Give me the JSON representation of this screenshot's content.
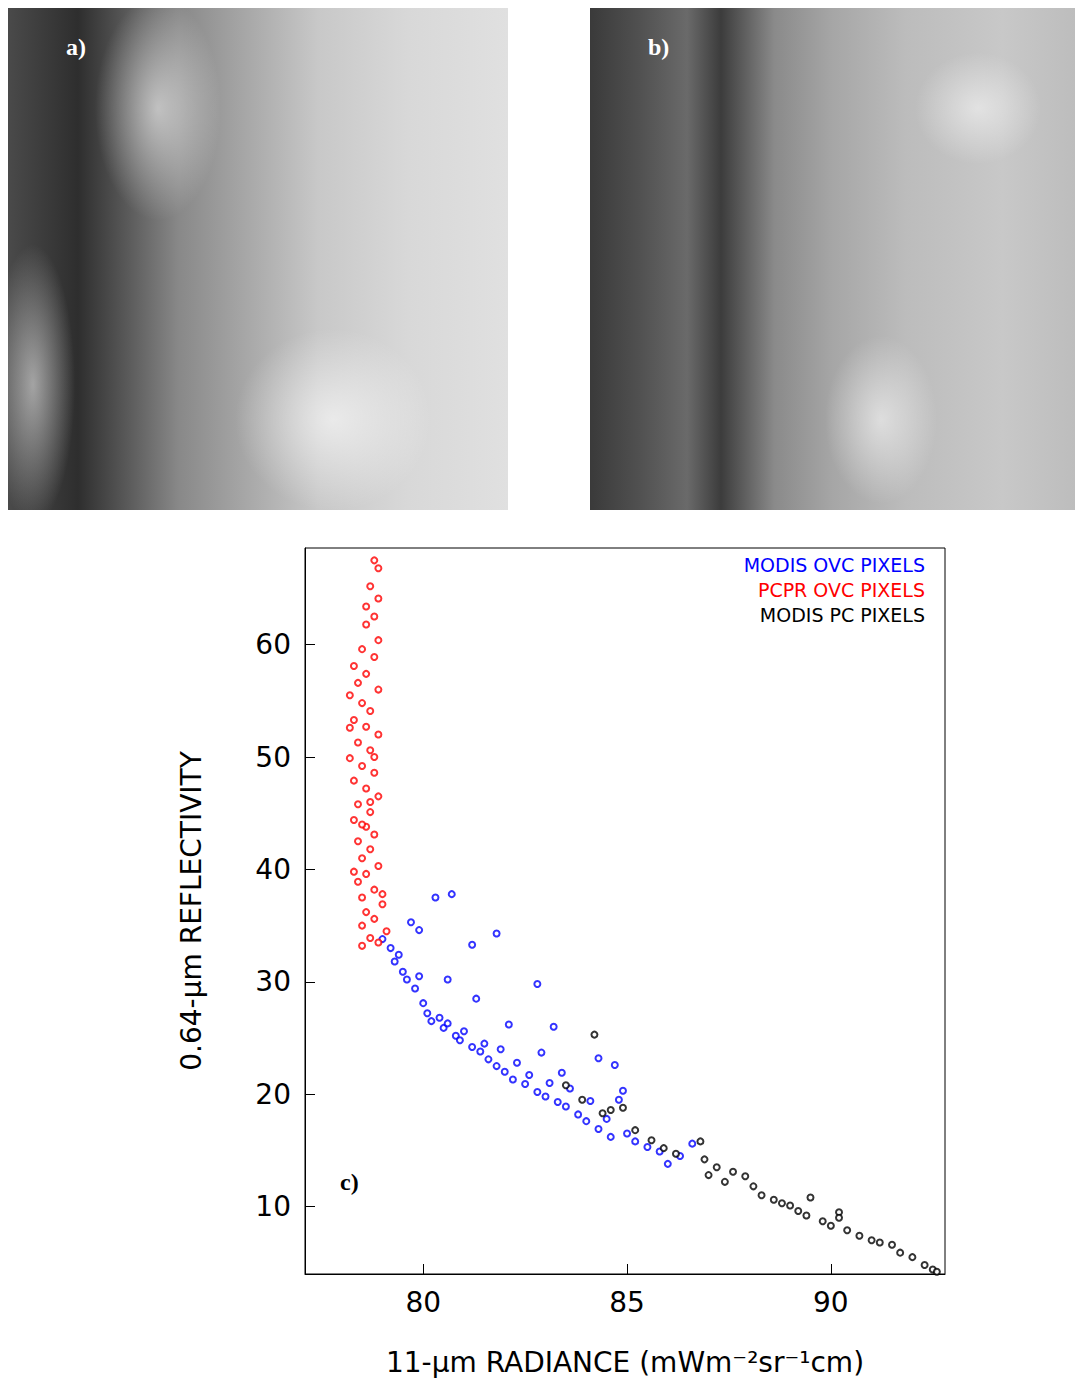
{
  "images": [
    {
      "label": "a)"
    },
    {
      "label": "b)"
    }
  ],
  "chart_data": {
    "type": "scatter",
    "panel_label": "c)",
    "x_label": "11-μm RADIANCE (mWm⁻²sr⁻¹cm)",
    "y_label": "0.64-μm REFLECTIVITY",
    "xlim": [
      77.1,
      92.8
    ],
    "xticks": [
      80,
      85,
      90
    ],
    "ylim": [
      4,
      68.6
    ],
    "yticks": [
      10,
      20,
      30,
      40,
      50,
      60
    ],
    "legend": "upper right",
    "marker": "open circle",
    "grid": false,
    "series": [
      {
        "name": "MODIS OVC PIXELS",
        "color": "#0000ff",
        "x": [
          79.0,
          79.2,
          79.3,
          79.4,
          79.5,
          79.6,
          79.8,
          79.9,
          80.0,
          80.1,
          80.2,
          80.4,
          80.5,
          80.6,
          80.8,
          80.9,
          81.0,
          81.2,
          81.4,
          81.5,
          81.6,
          81.8,
          81.9,
          82.0,
          82.2,
          82.3,
          82.5,
          82.6,
          82.8,
          83.0,
          83.1,
          83.3,
          83.5,
          83.6,
          83.8,
          84.0,
          84.1,
          84.3,
          84.5,
          84.6,
          84.8,
          85.0,
          85.2,
          85.5,
          85.8,
          86.0,
          86.3,
          86.6,
          79.7,
          79.9,
          80.3,
          80.7,
          81.2,
          81.8,
          81.3,
          82.8,
          83.2,
          82.1,
          84.3,
          84.7,
          83.4,
          80.6,
          82.9,
          84.9
        ],
        "values": [
          33.8,
          33.0,
          31.8,
          32.4,
          30.9,
          30.2,
          29.4,
          30.5,
          28.1,
          27.2,
          26.5,
          26.8,
          25.9,
          26.3,
          25.2,
          24.8,
          25.6,
          24.2,
          23.8,
          24.5,
          23.1,
          22.5,
          24.0,
          22.0,
          21.3,
          22.8,
          20.9,
          21.7,
          20.2,
          19.8,
          21.0,
          19.3,
          18.9,
          20.5,
          18.2,
          17.6,
          19.4,
          16.9,
          17.8,
          16.2,
          19.5,
          16.5,
          15.8,
          15.3,
          14.9,
          13.8,
          14.5,
          15.6,
          35.3,
          34.6,
          37.5,
          37.8,
          33.3,
          34.3,
          28.5,
          29.8,
          26.0,
          26.2,
          23.2,
          22.6,
          21.9,
          30.2,
          23.7,
          20.3
        ]
      },
      {
        "name": "PCPR OVC PIXELS",
        "color": "#ff0000",
        "x": [
          78.8,
          78.9,
          78.7,
          78.9,
          78.8,
          78.6,
          78.9,
          78.5,
          78.8,
          78.3,
          78.6,
          78.4,
          78.9,
          78.2,
          78.5,
          78.7,
          78.3,
          78.6,
          78.9,
          78.4,
          78.7,
          78.2,
          78.5,
          78.8,
          78.3,
          78.6,
          78.9,
          78.4,
          78.7,
          78.3,
          78.6,
          78.8,
          78.4,
          78.7,
          78.5,
          78.9,
          78.6,
          78.4,
          78.8,
          78.5,
          79.0,
          78.6,
          78.8,
          78.5,
          79.1,
          78.7,
          78.5,
          78.9,
          78.2,
          78.3,
          78.6,
          79.0,
          78.7,
          78.5,
          78.8
        ],
        "values": [
          67.5,
          66.8,
          65.2,
          64.1,
          62.5,
          61.8,
          60.4,
          59.6,
          58.9,
          58.1,
          57.4,
          56.6,
          56.0,
          55.5,
          54.8,
          54.1,
          53.3,
          52.7,
          52.0,
          51.3,
          50.6,
          49.9,
          49.2,
          48.6,
          47.9,
          47.2,
          46.5,
          45.8,
          45.1,
          44.4,
          43.8,
          43.1,
          42.5,
          41.8,
          41.0,
          40.3,
          39.6,
          38.9,
          38.2,
          37.5,
          36.9,
          36.2,
          35.6,
          35.0,
          34.5,
          33.9,
          33.2,
          33.5,
          52.6,
          39.8,
          63.4,
          37.8,
          46.0,
          44.0,
          50.0
        ]
      },
      {
        "name": "MODIS PC PIXELS",
        "color": "#000000",
        "x": [
          83.5,
          83.9,
          84.2,
          84.4,
          84.6,
          84.9,
          85.2,
          85.6,
          85.9,
          86.2,
          86.8,
          86.9,
          87.2,
          87.4,
          87.6,
          87.9,
          88.1,
          88.3,
          88.6,
          89.0,
          89.2,
          89.4,
          89.5,
          89.8,
          90.0,
          90.2,
          90.4,
          90.7,
          91.0,
          91.2,
          91.5,
          91.7,
          92.0,
          92.3,
          92.5,
          92.6,
          88.8,
          87.0,
          90.2
        ],
        "values": [
          20.8,
          19.5,
          25.3,
          18.3,
          18.6,
          18.8,
          16.8,
          15.9,
          15.2,
          14.7,
          15.8,
          14.2,
          13.5,
          12.2,
          13.1,
          12.7,
          11.8,
          11.0,
          10.6,
          10.1,
          9.6,
          9.2,
          10.8,
          8.7,
          8.3,
          9.5,
          7.9,
          7.4,
          7.0,
          6.8,
          6.6,
          5.9,
          5.5,
          4.8,
          4.4,
          4.2,
          10.3,
          12.8,
          9.0
        ]
      }
    ]
  }
}
